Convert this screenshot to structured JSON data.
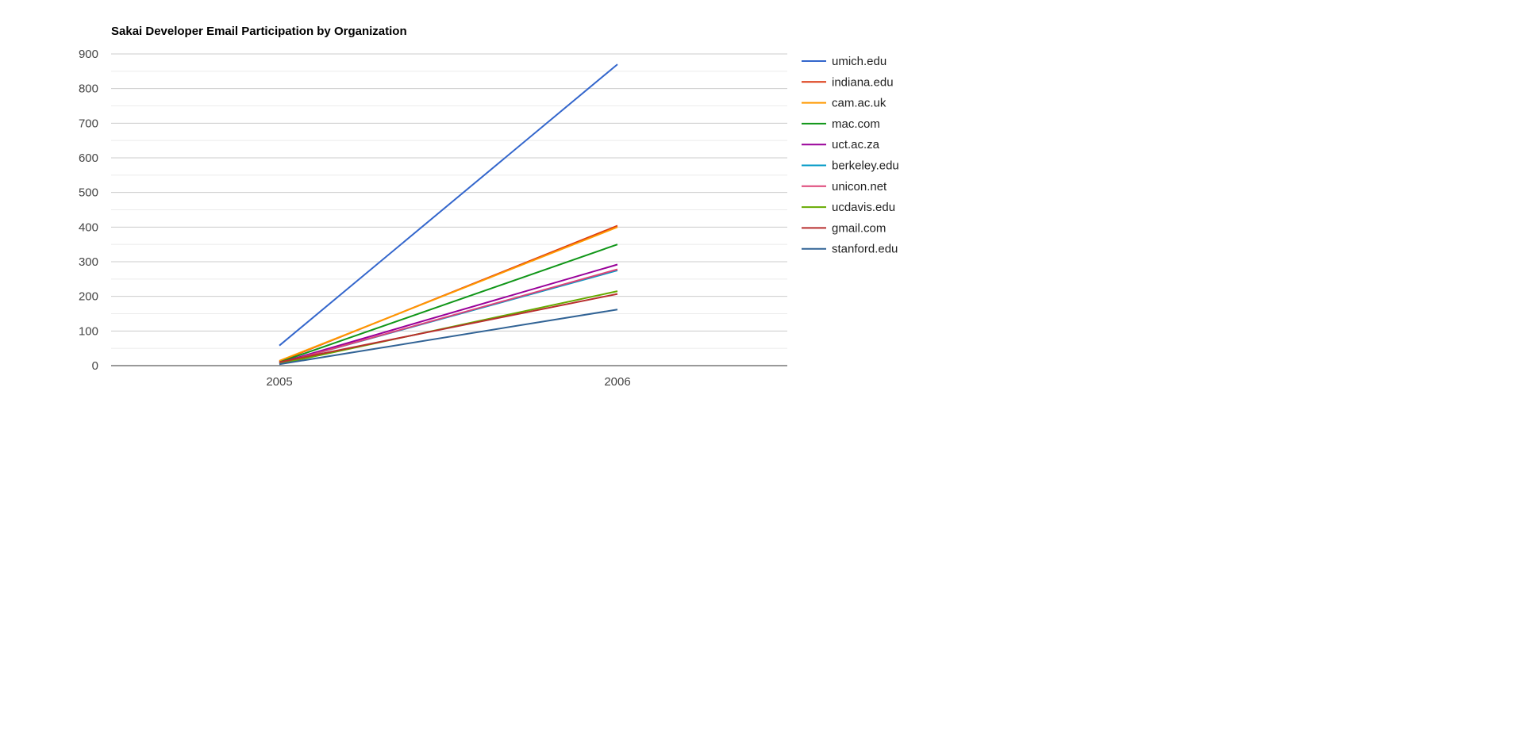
{
  "chart_data": {
    "type": "line",
    "title": "Sakai Developer Email Participation by Organization",
    "xlabel": "",
    "ylabel": "",
    "categories": [
      "2005",
      "2006"
    ],
    "ylim": [
      0,
      900
    ],
    "yticks": [
      "0",
      "100",
      "200",
      "300",
      "400",
      "500",
      "600",
      "700",
      "800",
      "900"
    ],
    "grid": true,
    "legend_position": "right",
    "series": [
      {
        "name": "umich.edu",
        "color": "#3366cc",
        "values": [
          58,
          870
        ]
      },
      {
        "name": "indiana.edu",
        "color": "#dc3912",
        "values": [
          12,
          404
        ]
      },
      {
        "name": "cam.ac.uk",
        "color": "#ff9900",
        "values": [
          14,
          400
        ]
      },
      {
        "name": "mac.com",
        "color": "#109618",
        "values": [
          10,
          350
        ]
      },
      {
        "name": "uct.ac.za",
        "color": "#990099",
        "values": [
          8,
          292
        ]
      },
      {
        "name": "berkeley.edu",
        "color": "#0099c6",
        "values": [
          6,
          275
        ]
      },
      {
        "name": "unicon.net",
        "color": "#dd4477",
        "values": [
          6,
          278
        ]
      },
      {
        "name": "ucdavis.edu",
        "color": "#66aa00",
        "values": [
          5,
          215
        ]
      },
      {
        "name": "gmail.com",
        "color": "#b82e2e",
        "values": [
          10,
          207
        ]
      },
      {
        "name": "stanford.edu",
        "color": "#316395",
        "values": [
          4,
          162
        ]
      }
    ]
  }
}
